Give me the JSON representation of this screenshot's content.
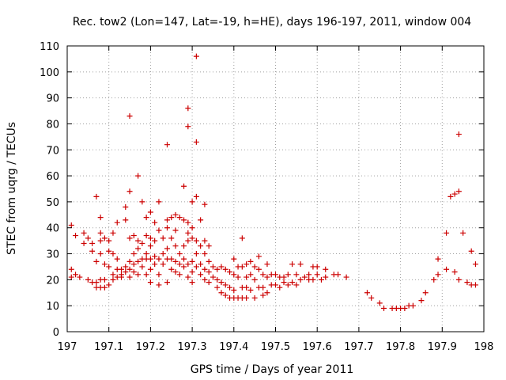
{
  "chart_data": {
    "type": "scatter",
    "title": "Rec. tow2 (Lon=147, Lat=-19, h=HE), days 196-197, 2011, window 004",
    "xlabel": "GPS time / Days of year 2011",
    "ylabel": "STEC from uqrg / TECUs",
    "xlim": [
      197,
      198
    ],
    "ylim": [
      0,
      110
    ],
    "xticks": [
      197,
      197.1,
      197.2,
      197.3,
      197.4,
      197.5,
      197.6,
      197.7,
      197.8,
      197.9,
      198
    ],
    "xtick_labels": [
      "197",
      "197.1",
      "197.2",
      "197.3",
      "197.4",
      "197.5",
      "197.6",
      "197.7",
      "197.8",
      "197.9",
      "198"
    ],
    "yticks": [
      0,
      10,
      20,
      30,
      40,
      50,
      60,
      70,
      80,
      90,
      100,
      110
    ],
    "ytick_labels": [
      "0",
      "10",
      "20",
      "30",
      "40",
      "50",
      "60",
      "70",
      "80",
      "90",
      "100",
      "110"
    ],
    "grid": true,
    "legend": false,
    "marker": "plus",
    "color": "#cc0000",
    "series": [
      {
        "points": [
          [
            197.01,
            41
          ],
          [
            197.01,
            24
          ],
          [
            197.01,
            21
          ],
          [
            197.02,
            37
          ],
          [
            197.02,
            22
          ],
          [
            197.03,
            21
          ],
          [
            197.04,
            38
          ],
          [
            197.04,
            34
          ],
          [
            197.05,
            20
          ],
          [
            197.05,
            36
          ],
          [
            197.06,
            34
          ],
          [
            197.06,
            31
          ],
          [
            197.06,
            19
          ],
          [
            197.07,
            52
          ],
          [
            197.07,
            27
          ],
          [
            197.07,
            19
          ],
          [
            197.07,
            17
          ],
          [
            197.08,
            44
          ],
          [
            197.08,
            38
          ],
          [
            197.08,
            35
          ],
          [
            197.08,
            30
          ],
          [
            197.08,
            20
          ],
          [
            197.08,
            17
          ],
          [
            197.09,
            36
          ],
          [
            197.09,
            26
          ],
          [
            197.09,
            20
          ],
          [
            197.09,
            17
          ],
          [
            197.1,
            35
          ],
          [
            197.1,
            31
          ],
          [
            197.1,
            25
          ],
          [
            197.1,
            18
          ],
          [
            197.11,
            38
          ],
          [
            197.11,
            30
          ],
          [
            197.11,
            22
          ],
          [
            197.11,
            20
          ],
          [
            197.12,
            42
          ],
          [
            197.12,
            28
          ],
          [
            197.12,
            24
          ],
          [
            197.12,
            21
          ],
          [
            197.13,
            24
          ],
          [
            197.13,
            22
          ],
          [
            197.13,
            21
          ],
          [
            197.14,
            48
          ],
          [
            197.14,
            43
          ],
          [
            197.14,
            25
          ],
          [
            197.14,
            23
          ],
          [
            197.15,
            36
          ],
          [
            197.15,
            27
          ],
          [
            197.15,
            24
          ],
          [
            197.15,
            21
          ],
          [
            197.15,
            83
          ],
          [
            197.15,
            54
          ],
          [
            197.16,
            37
          ],
          [
            197.16,
            30
          ],
          [
            197.16,
            26
          ],
          [
            197.16,
            23
          ],
          [
            197.17,
            60
          ],
          [
            197.17,
            35
          ],
          [
            197.17,
            32
          ],
          [
            197.17,
            27
          ],
          [
            197.17,
            22
          ],
          [
            197.18,
            50
          ],
          [
            197.18,
            34
          ],
          [
            197.18,
            28
          ],
          [
            197.18,
            25
          ],
          [
            197.19,
            44
          ],
          [
            197.19,
            37
          ],
          [
            197.19,
            30
          ],
          [
            197.19,
            28
          ],
          [
            197.19,
            22
          ],
          [
            197.2,
            46
          ],
          [
            197.2,
            36
          ],
          [
            197.2,
            33
          ],
          [
            197.2,
            28
          ],
          [
            197.2,
            24
          ],
          [
            197.2,
            19
          ],
          [
            197.21,
            42
          ],
          [
            197.21,
            35
          ],
          [
            197.21,
            29
          ],
          [
            197.21,
            26
          ],
          [
            197.22,
            50
          ],
          [
            197.22,
            39
          ],
          [
            197.22,
            28
          ],
          [
            197.22,
            22
          ],
          [
            197.22,
            18
          ],
          [
            197.23,
            36
          ],
          [
            197.23,
            30
          ],
          [
            197.23,
            26
          ],
          [
            197.24,
            72
          ],
          [
            197.24,
            43
          ],
          [
            197.24,
            40
          ],
          [
            197.24,
            32
          ],
          [
            197.24,
            28
          ],
          [
            197.24,
            19
          ],
          [
            197.25,
            44
          ],
          [
            197.25,
            36
          ],
          [
            197.25,
            28
          ],
          [
            197.25,
            24
          ],
          [
            197.26,
            45
          ],
          [
            197.26,
            39
          ],
          [
            197.26,
            33
          ],
          [
            197.26,
            27
          ],
          [
            197.26,
            23
          ],
          [
            197.27,
            44
          ],
          [
            197.27,
            30
          ],
          [
            197.27,
            26
          ],
          [
            197.27,
            22
          ],
          [
            197.28,
            56
          ],
          [
            197.28,
            43
          ],
          [
            197.28,
            33
          ],
          [
            197.28,
            28
          ],
          [
            197.28,
            25
          ],
          [
            197.29,
            42
          ],
          [
            197.29,
            38
          ],
          [
            197.29,
            35
          ],
          [
            197.29,
            26
          ],
          [
            197.29,
            21
          ],
          [
            197.29,
            86
          ],
          [
            197.29,
            79
          ],
          [
            197.3,
            50
          ],
          [
            197.3,
            40
          ],
          [
            197.3,
            36
          ],
          [
            197.3,
            27
          ],
          [
            197.3,
            23
          ],
          [
            197.3,
            19
          ],
          [
            197.31,
            106
          ],
          [
            197.31,
            73
          ],
          [
            197.31,
            52
          ],
          [
            197.31,
            35
          ],
          [
            197.31,
            30
          ],
          [
            197.31,
            25
          ],
          [
            197.32,
            43
          ],
          [
            197.32,
            33
          ],
          [
            197.32,
            26
          ],
          [
            197.32,
            22
          ],
          [
            197.33,
            49
          ],
          [
            197.33,
            35
          ],
          [
            197.33,
            30
          ],
          [
            197.33,
            24
          ],
          [
            197.33,
            20
          ],
          [
            197.34,
            33
          ],
          [
            197.34,
            27
          ],
          [
            197.34,
            23
          ],
          [
            197.34,
            19
          ],
          [
            197.35,
            25
          ],
          [
            197.35,
            21
          ],
          [
            197.36,
            24
          ],
          [
            197.36,
            20
          ],
          [
            197.36,
            17
          ],
          [
            197.37,
            25
          ],
          [
            197.37,
            19
          ],
          [
            197.37,
            15
          ],
          [
            197.38,
            24
          ],
          [
            197.38,
            18
          ],
          [
            197.38,
            14
          ],
          [
            197.39,
            23
          ],
          [
            197.39,
            17
          ],
          [
            197.39,
            13
          ],
          [
            197.4,
            28
          ],
          [
            197.4,
            22
          ],
          [
            197.4,
            16
          ],
          [
            197.4,
            13
          ],
          [
            197.41,
            25
          ],
          [
            197.41,
            21
          ],
          [
            197.41,
            13
          ],
          [
            197.42,
            36
          ],
          [
            197.42,
            25
          ],
          [
            197.42,
            17
          ],
          [
            197.42,
            13
          ],
          [
            197.43,
            26
          ],
          [
            197.43,
            21
          ],
          [
            197.43,
            17
          ],
          [
            197.43,
            13
          ],
          [
            197.44,
            27
          ],
          [
            197.44,
            22
          ],
          [
            197.44,
            16
          ],
          [
            197.45,
            25
          ],
          [
            197.45,
            20
          ],
          [
            197.45,
            13
          ],
          [
            197.46,
            29
          ],
          [
            197.46,
            24
          ],
          [
            197.46,
            17
          ],
          [
            197.47,
            22
          ],
          [
            197.47,
            17
          ],
          [
            197.47,
            14
          ],
          [
            197.48,
            26
          ],
          [
            197.48,
            21
          ],
          [
            197.48,
            15
          ],
          [
            197.49,
            22
          ],
          [
            197.49,
            18
          ],
          [
            197.5,
            22
          ],
          [
            197.5,
            18
          ],
          [
            197.51,
            21
          ],
          [
            197.51,
            17
          ],
          [
            197.52,
            21
          ],
          [
            197.52,
            19
          ],
          [
            197.53,
            22
          ],
          [
            197.53,
            18
          ],
          [
            197.54,
            26
          ],
          [
            197.54,
            19
          ],
          [
            197.55,
            22
          ],
          [
            197.55,
            18
          ],
          [
            197.56,
            26
          ],
          [
            197.56,
            20
          ],
          [
            197.57,
            21
          ],
          [
            197.58,
            20
          ],
          [
            197.58,
            22
          ],
          [
            197.59,
            25
          ],
          [
            197.59,
            20
          ],
          [
            197.6,
            25
          ],
          [
            197.6,
            22
          ],
          [
            197.61,
            20
          ],
          [
            197.62,
            24
          ],
          [
            197.62,
            21
          ],
          [
            197.64,
            22
          ],
          [
            197.65,
            22
          ],
          [
            197.67,
            21
          ],
          [
            197.72,
            15
          ],
          [
            197.73,
            13
          ],
          [
            197.75,
            11
          ],
          [
            197.76,
            9
          ],
          [
            197.78,
            9
          ],
          [
            197.79,
            9
          ],
          [
            197.8,
            9
          ],
          [
            197.81,
            9
          ],
          [
            197.82,
            10
          ],
          [
            197.83,
            10
          ],
          [
            197.85,
            12
          ],
          [
            197.86,
            15
          ],
          [
            197.88,
            20
          ],
          [
            197.89,
            22
          ],
          [
            197.89,
            28
          ],
          [
            197.91,
            38
          ],
          [
            197.91,
            24
          ],
          [
            197.92,
            52
          ],
          [
            197.93,
            53
          ],
          [
            197.93,
            23
          ],
          [
            197.94,
            76
          ],
          [
            197.94,
            54
          ],
          [
            197.94,
            20
          ],
          [
            197.95,
            38
          ],
          [
            197.96,
            19
          ],
          [
            197.97,
            18
          ],
          [
            197.97,
            31
          ],
          [
            197.98,
            26
          ],
          [
            197.98,
            18
          ]
        ]
      }
    ]
  }
}
